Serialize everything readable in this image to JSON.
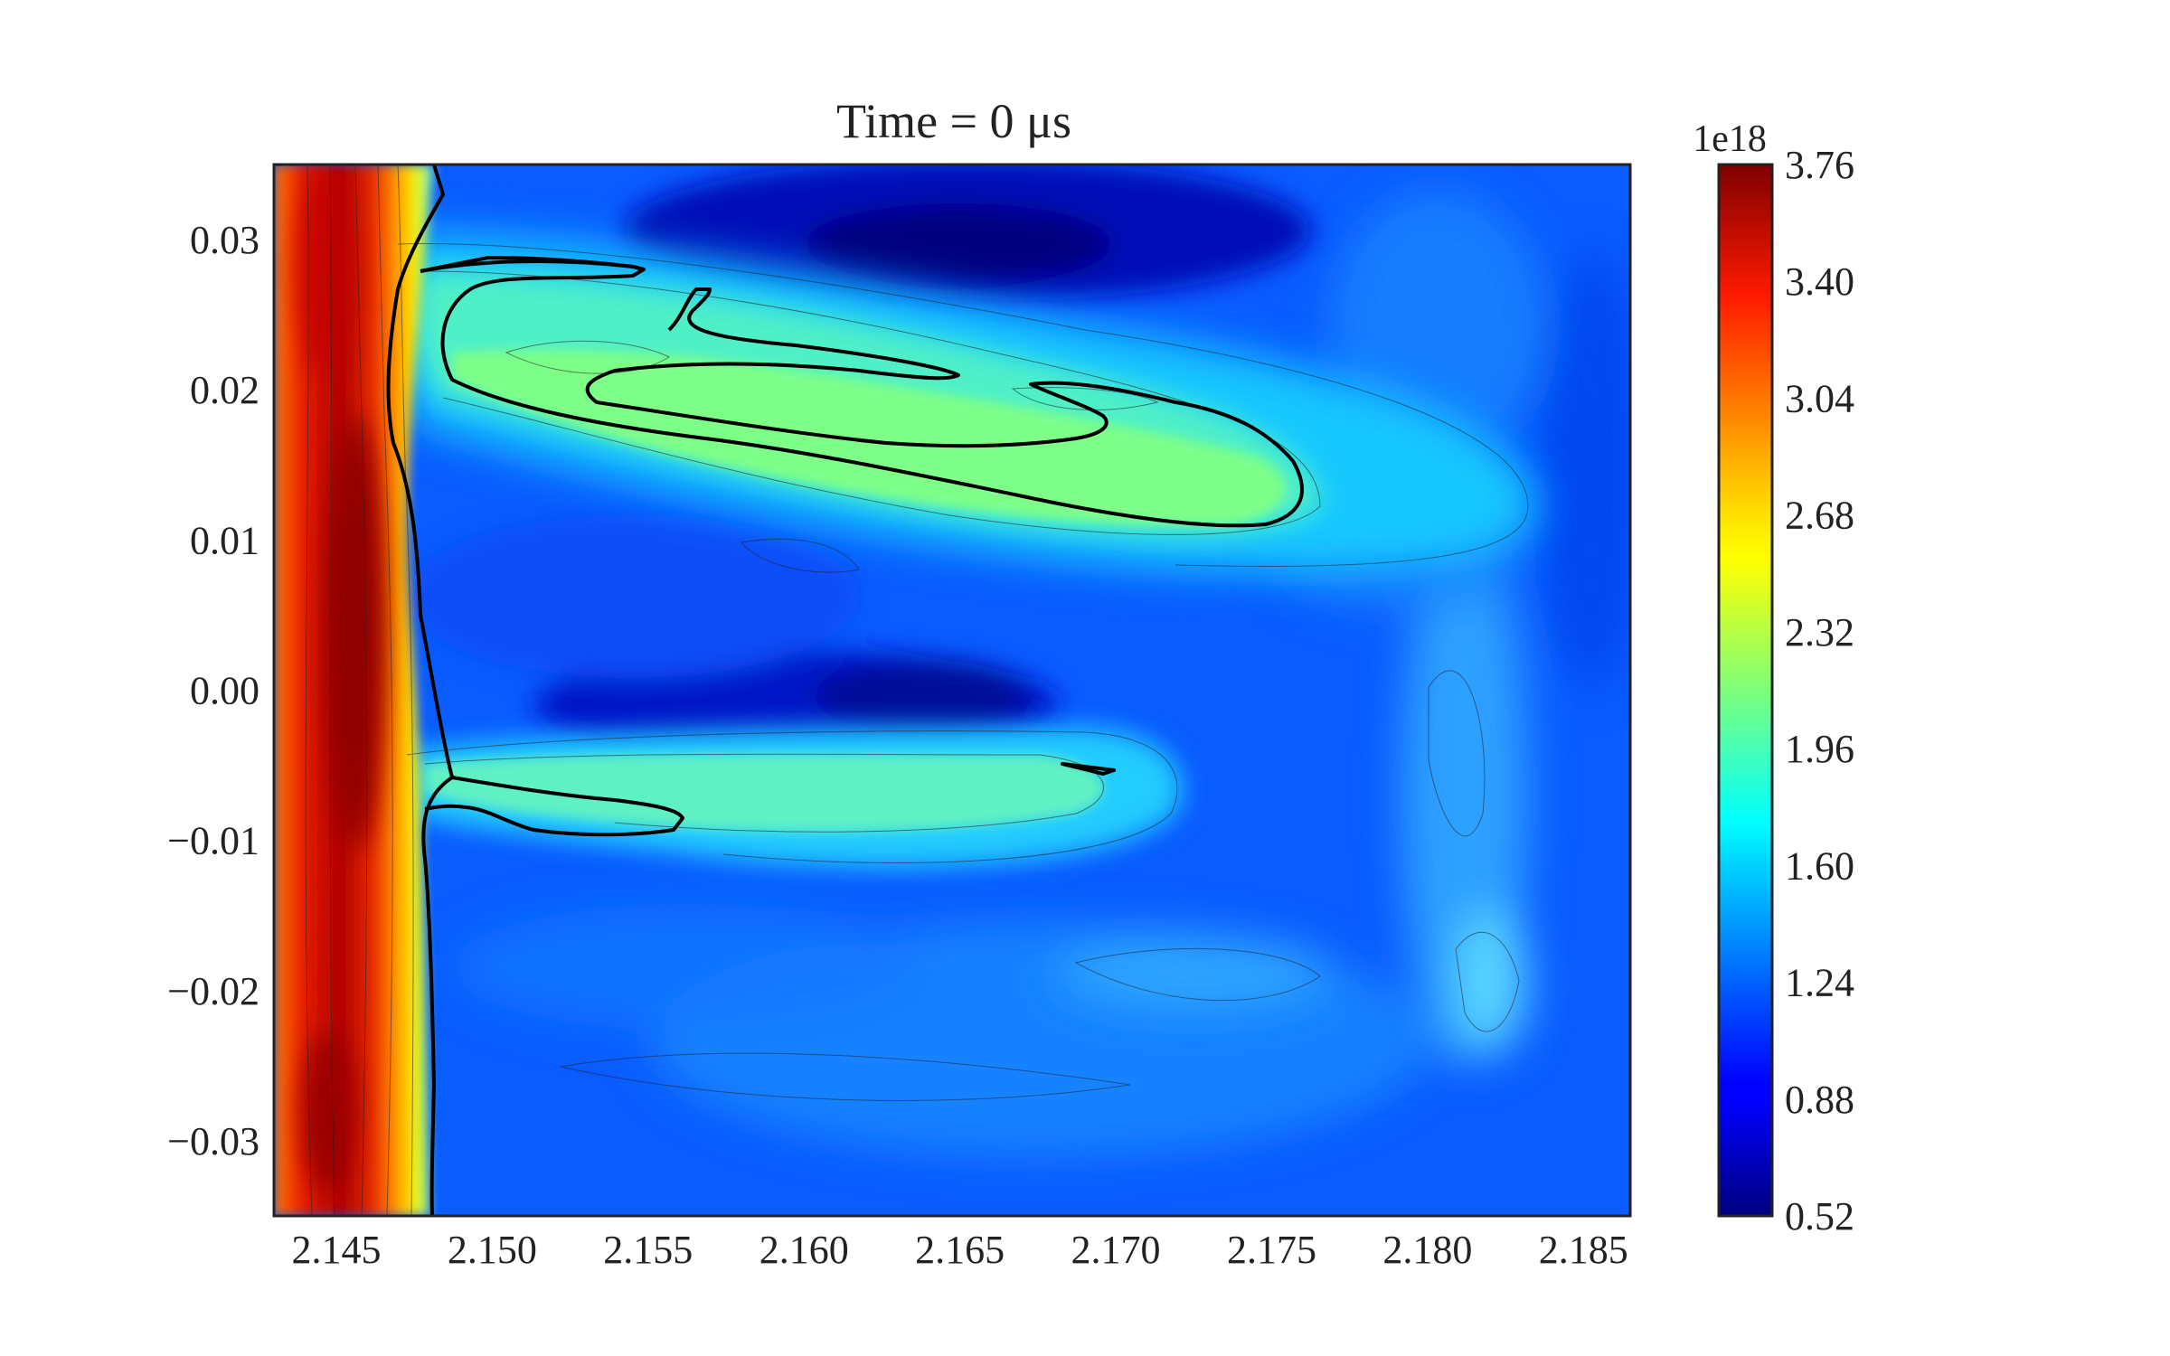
{
  "chart_data": {
    "type": "heatmap",
    "subtype": "filled-contour",
    "title": "Time = 0 μs",
    "xlabel": "",
    "ylabel": "",
    "xlim": [
      2.143,
      2.1865
    ],
    "ylim": [
      -0.035,
      0.035
    ],
    "xticks": [
      2.145,
      2.15,
      2.155,
      2.16,
      2.165,
      2.17,
      2.175,
      2.18,
      2.185
    ],
    "xtick_labels": [
      "2.145",
      "2.150",
      "2.155",
      "2.160",
      "2.165",
      "2.170",
      "2.175",
      "2.180",
      "2.185"
    ],
    "yticks": [
      0.03,
      0.02,
      0.01,
      0.0,
      -0.01,
      -0.02,
      -0.03
    ],
    "ytick_labels": [
      "0.03",
      "0.02",
      "0.01",
      "0.00",
      "−0.01",
      "−0.02",
      "−0.03"
    ],
    "colorbar": {
      "label": "",
      "offset_text": "1e18",
      "range": [
        0.52,
        3.76
      ],
      "ticks": [
        0.52,
        0.88,
        1.24,
        1.6,
        1.96,
        2.32,
        2.68,
        3.04,
        3.4,
        3.76
      ],
      "tick_labels": [
        "0.52",
        "0.88",
        "1.24",
        "1.60",
        "1.96",
        "2.32",
        "2.68",
        "3.04",
        "3.40",
        "3.76"
      ],
      "colormap": "jet"
    },
    "highlighted_contour_level": 2.0,
    "grid": false,
    "features": [
      {
        "name": "left-edge-maximum",
        "x_range": [
          2.143,
          2.1475
        ],
        "y_range": [
          -0.035,
          0.035
        ],
        "value": 3.76
      },
      {
        "name": "upper-jet",
        "x_range": [
          2.147,
          2.181
        ],
        "y_range": [
          0.008,
          0.028
        ],
        "value": 2.1
      },
      {
        "name": "lower-jet",
        "x_range": [
          2.147,
          2.171
        ],
        "y_range": [
          -0.012,
          -0.003
        ],
        "value": 1.9
      },
      {
        "name": "upper-minimum",
        "x_range": [
          2.155,
          2.178
        ],
        "y_range": [
          0.026,
          0.035
        ],
        "value": 0.6
      },
      {
        "name": "central-minimum",
        "x_range": [
          2.158,
          2.171
        ],
        "y_range": [
          -0.003,
          0.003
        ],
        "value": 0.7
      },
      {
        "name": "right-ridge",
        "x_range": [
          2.178,
          2.185
        ],
        "y_range": [
          -0.03,
          0.015
        ],
        "value": 1.6
      }
    ]
  }
}
